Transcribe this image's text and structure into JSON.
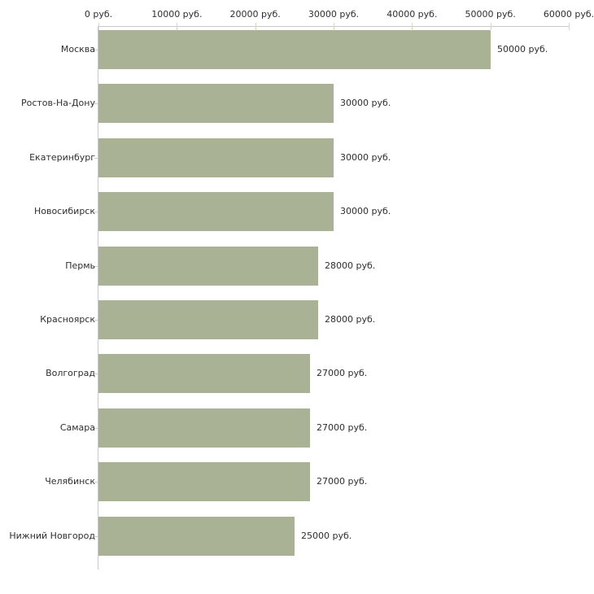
{
  "chart_data": {
    "type": "bar",
    "orientation": "horizontal",
    "title": "",
    "xlabel": "",
    "ylabel": "",
    "unit": "руб.",
    "categories": [
      "Москва",
      "Ростов-На-Дону",
      "Екатеринбург",
      "Новосибирск",
      "Пермь",
      "Красноярск",
      "Волгоград",
      "Самара",
      "Челябинск",
      "Нижний Новгород"
    ],
    "values": [
      50000,
      30000,
      30000,
      30000,
      28000,
      28000,
      27000,
      27000,
      27000,
      25000
    ],
    "value_labels": [
      "50000 руб.",
      "30000 руб.",
      "30000 руб.",
      "30000 руб.",
      "28000 руб.",
      "28000 руб.",
      "27000 руб.",
      "27000 руб.",
      "27000 руб.",
      "25000 руб."
    ],
    "xlim": [
      0,
      60000
    ],
    "x_tick_interval": 10000,
    "x_tick_labels": [
      "0 руб.",
      "10000 руб.",
      "20000 руб.",
      "30000 руб.",
      "40000 руб.",
      "50000 руб.",
      "60000 руб."
    ],
    "axis_position": "top",
    "grid": false,
    "legend": false,
    "colors": {
      "bar_fill": "#aab296",
      "axis_line": "#c9c9c9",
      "axis_tick": "#d6dabc",
      "category_tick": "#cfcfc3",
      "text": "#2e2e2e",
      "background": "#ffffff"
    }
  }
}
